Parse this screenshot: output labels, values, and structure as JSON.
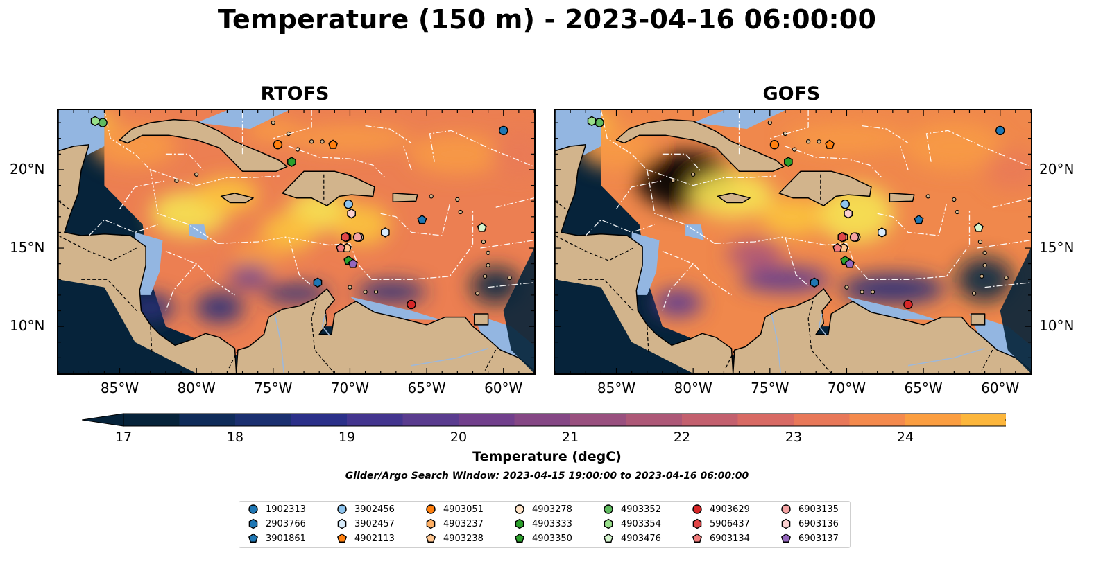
{
  "figure": {
    "title": "Temperature (150 m) - 2023-04-16 06:00:00",
    "search_window": "Glider/Argo Search Window: 2023-04-15 19:00:00 to 2023-04-16 06:00:00"
  },
  "maps": [
    {
      "title": "RTOFS",
      "variant": "rtofs"
    },
    {
      "title": "GOFS",
      "variant": "gofs"
    }
  ],
  "axes": {
    "lon_labels": [
      "85°W",
      "80°W",
      "75°W",
      "70°W",
      "65°W",
      "60°W"
    ],
    "lat_labels": [
      "20°N",
      "15°N",
      "10°N"
    ],
    "lon_range": [
      -89,
      -58
    ],
    "lat_range": [
      7,
      23.8
    ]
  },
  "colorbar": {
    "label": "Temperature (degC)",
    "ticks": [
      "17",
      "18",
      "19",
      "20",
      "21",
      "22",
      "23",
      "24"
    ],
    "colors": [
      "#06233a",
      "#0f2c5a",
      "#1b3070",
      "#2b3089",
      "#43358f",
      "#5a3c8f",
      "#713f8c",
      "#854785",
      "#99507f",
      "#ad5877",
      "#c3606e",
      "#d86a64",
      "#e87859",
      "#f48a4d",
      "#fb9e41",
      "#fcb63c",
      "#f6cd43",
      "#e9e751"
    ]
  },
  "colors": {
    "land": "#d2b48c",
    "shallow_water": "#93b6e1",
    "deep_water": "#06233a",
    "eez_lines": "#ffffff"
  },
  "floats": [
    {
      "id": "1902313",
      "marker": "circle",
      "color": "#1f77b4",
      "lon": -60.0,
      "lat": 22.5
    },
    {
      "id": "2903766",
      "marker": "hexagon",
      "color": "#1f77b4",
      "lon": -72.1,
      "lat": 12.8
    },
    {
      "id": "3901861",
      "marker": "pentagon",
      "color": "#1f77b4",
      "lon": -65.3,
      "lat": 16.8
    },
    {
      "id": "3902456",
      "marker": "circle",
      "color": "#8ec4ee",
      "lon": -70.1,
      "lat": 17.8
    },
    {
      "id": "3902457",
      "marker": "hexagon",
      "color": "#d8ebfa",
      "lon": -67.7,
      "lat": 16.0
    },
    {
      "id": "4902113",
      "marker": "pentagon",
      "color": "#ff7f0e",
      "lon": -71.1,
      "lat": 21.6
    },
    {
      "id": "4903051",
      "marker": "circle",
      "color": "#ff7f0e",
      "lon": -74.7,
      "lat": 21.6
    },
    {
      "id": "4903237",
      "marker": "hexagon",
      "color": "#ffb064",
      "lon": -70.2,
      "lat": 15.7
    },
    {
      "id": "4903238",
      "marker": "pentagon",
      "color": "#ffc690",
      "lon": -70.2,
      "lat": 15.0
    },
    {
      "id": "4903278",
      "marker": "circle",
      "color": "#ffe4c8",
      "lon": -69.4,
      "lat": 15.7
    },
    {
      "id": "4903333",
      "marker": "hexagon",
      "color": "#2ca02c",
      "lon": -73.8,
      "lat": 20.5
    },
    {
      "id": "4903350",
      "marker": "pentagon",
      "color": "#2ca02c",
      "lon": -70.1,
      "lat": 14.2
    },
    {
      "id": "4903352",
      "marker": "circle",
      "color": "#5fba5f",
      "lon": -86.1,
      "lat": 23.0
    },
    {
      "id": "4903354",
      "marker": "hexagon",
      "color": "#98df8a",
      "lon": -86.6,
      "lat": 23.1
    },
    {
      "id": "4903476",
      "marker": "pentagon",
      "color": "#d5f5cf",
      "lon": -61.4,
      "lat": 16.3
    },
    {
      "id": "4903629",
      "marker": "circle",
      "color": "#d62728",
      "lon": -66.0,
      "lat": 11.4
    },
    {
      "id": "5906437",
      "marker": "hexagon",
      "color": "#e04546",
      "lon": -70.3,
      "lat": 15.7
    },
    {
      "id": "6903134",
      "marker": "pentagon",
      "color": "#f07b7b",
      "lon": -70.6,
      "lat": 15.0
    },
    {
      "id": "6903135",
      "marker": "circle",
      "color": "#f4a3a3",
      "lon": -69.5,
      "lat": 15.7
    },
    {
      "id": "6903136",
      "marker": "hexagon",
      "color": "#fbd0d0",
      "lon": -69.9,
      "lat": 17.2
    },
    {
      "id": "6903137",
      "marker": "pentagon",
      "color": "#9467bd",
      "lon": -69.8,
      "lat": 14.0
    }
  ]
}
